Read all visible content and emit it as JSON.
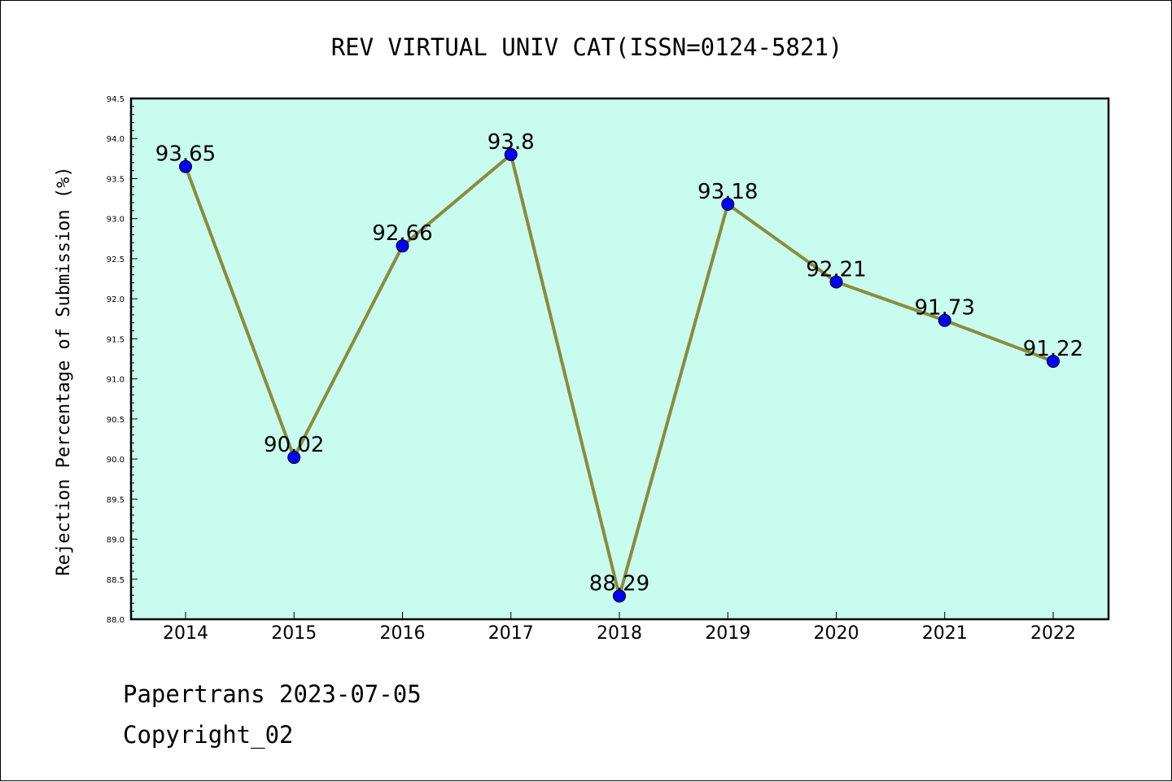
{
  "chart_data": {
    "type": "line",
    "title": "REV VIRTUAL UNIV CAT(ISSN=0124-5821)",
    "xlabel": "",
    "ylabel": "Rejection Percentage of Submission (%)",
    "categories": [
      "2014",
      "2015",
      "2016",
      "2017",
      "2018",
      "2019",
      "2020",
      "2021",
      "2022"
    ],
    "values": [
      93.65,
      90.02,
      92.66,
      93.8,
      88.29,
      93.18,
      92.21,
      91.73,
      91.22
    ],
    "data_labels": [
      "93.65",
      "90.02",
      "92.66",
      "93.8",
      "88.29",
      "93.18",
      "92.21",
      "91.73",
      "91.22"
    ],
    "ylim": [
      88.0,
      94.5
    ],
    "yticks": [
      "88.0",
      "88.5",
      "89.0",
      "89.5",
      "90.0",
      "90.5",
      "91.0",
      "91.5",
      "92.0",
      "92.5",
      "93.0",
      "93.5",
      "94.0",
      "94.5"
    ],
    "grid": false,
    "colors": {
      "plot_background": "#c8fcee",
      "line": "#8b8b3a",
      "marker": "#0000ff"
    }
  },
  "footer": {
    "line1": "Papertrans 2023-07-05",
    "line2": "Copyright_02"
  }
}
